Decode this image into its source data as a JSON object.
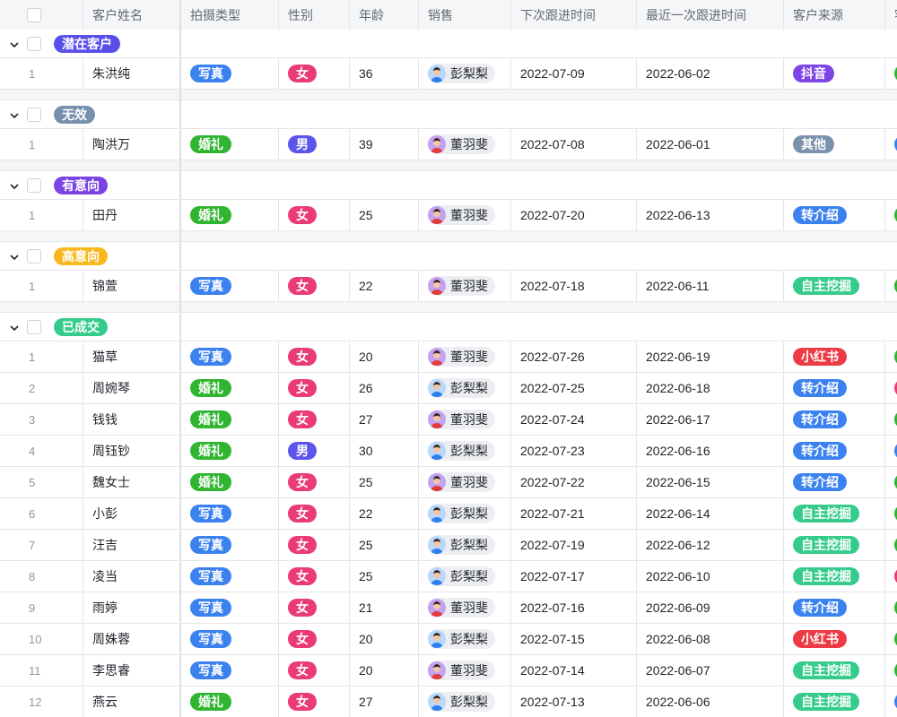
{
  "columns": [
    "客户姓名",
    "拍摄类型",
    "性别",
    "年龄",
    "销售",
    "下次跟进时间",
    "最近一次跟进时间",
    "客户来源",
    "客"
  ],
  "colors": {
    "写真": "#3b82f0",
    "婚礼": "#2fb52f",
    "女": "#ea3a78",
    "男": "#5b55ea",
    "抖音": "#7e45e6",
    "其他": "#7b91ad",
    "转介绍": "#3b82f0",
    "自主挖掘": "#35cc8b",
    "小红书": "#ec3b45",
    "green": "#2fb52f",
    "blue": "#3b82f0",
    "pink": "#ea3a78"
  },
  "avatars": {
    "彭梨梨": "#b9d8fb",
    "董羽斐": "#c3a2f1"
  },
  "groups": [
    {
      "label": "潜在客户",
      "color": "#5b4fea",
      "rows": [
        [
          "1",
          "朱洪纯",
          "写真",
          "女",
          "36",
          "彭梨梨",
          "2022-07-09",
          "2022-06-02",
          "抖音",
          "green"
        ]
      ]
    },
    {
      "label": "无效",
      "color": "#7890ad",
      "rows": [
        [
          "1",
          "陶洪万",
          "婚礼",
          "男",
          "39",
          "董羽斐",
          "2022-07-08",
          "2022-06-01",
          "其他",
          "blue"
        ]
      ]
    },
    {
      "label": "有意向",
      "color": "#7c45e3",
      "rows": [
        [
          "1",
          "田丹",
          "婚礼",
          "女",
          "25",
          "董羽斐",
          "2022-07-20",
          "2022-06-13",
          "转介绍",
          "green"
        ]
      ]
    },
    {
      "label": "高意向",
      "color": "#f7b81f",
      "rows": [
        [
          "1",
          "锦萱",
          "写真",
          "女",
          "22",
          "董羽斐",
          "2022-07-18",
          "2022-06-11",
          "自主挖掘",
          "green"
        ]
      ]
    },
    {
      "label": "已成交",
      "color": "#35cc8b",
      "rows": [
        [
          "1",
          "猫草",
          "写真",
          "女",
          "20",
          "董羽斐",
          "2022-07-26",
          "2022-06-19",
          "小红书",
          "green"
        ],
        [
          "2",
          "周婉琴",
          "婚礼",
          "女",
          "26",
          "彭梨梨",
          "2022-07-25",
          "2022-06-18",
          "转介绍",
          "pink"
        ],
        [
          "3",
          "钱钱",
          "婚礼",
          "女",
          "27",
          "董羽斐",
          "2022-07-24",
          "2022-06-17",
          "转介绍",
          "green"
        ],
        [
          "4",
          "周钰钞",
          "婚礼",
          "男",
          "30",
          "彭梨梨",
          "2022-07-23",
          "2022-06-16",
          "转介绍",
          "blue"
        ],
        [
          "5",
          "魏女士",
          "婚礼",
          "女",
          "25",
          "董羽斐",
          "2022-07-22",
          "2022-06-15",
          "转介绍",
          "green"
        ],
        [
          "6",
          "小彭",
          "写真",
          "女",
          "22",
          "彭梨梨",
          "2022-07-21",
          "2022-06-14",
          "自主挖掘",
          "green"
        ],
        [
          "7",
          "汪吉",
          "写真",
          "女",
          "25",
          "彭梨梨",
          "2022-07-19",
          "2022-06-12",
          "自主挖掘",
          "green"
        ],
        [
          "8",
          "凌当",
          "写真",
          "女",
          "25",
          "彭梨梨",
          "2022-07-17",
          "2022-06-10",
          "自主挖掘",
          "pink"
        ],
        [
          "9",
          "雨婷",
          "写真",
          "女",
          "21",
          "董羽斐",
          "2022-07-16",
          "2022-06-09",
          "转介绍",
          "green"
        ],
        [
          "10",
          "周姝蓉",
          "写真",
          "女",
          "20",
          "彭梨梨",
          "2022-07-15",
          "2022-06-08",
          "小红书",
          "green"
        ],
        [
          "11",
          "李思睿",
          "写真",
          "女",
          "20",
          "董羽斐",
          "2022-07-14",
          "2022-06-07",
          "自主挖掘",
          "green"
        ],
        [
          "12",
          "燕云",
          "婚礼",
          "女",
          "27",
          "彭梨梨",
          "2022-07-13",
          "2022-06-06",
          "自主挖掘",
          "blue"
        ]
      ]
    }
  ]
}
